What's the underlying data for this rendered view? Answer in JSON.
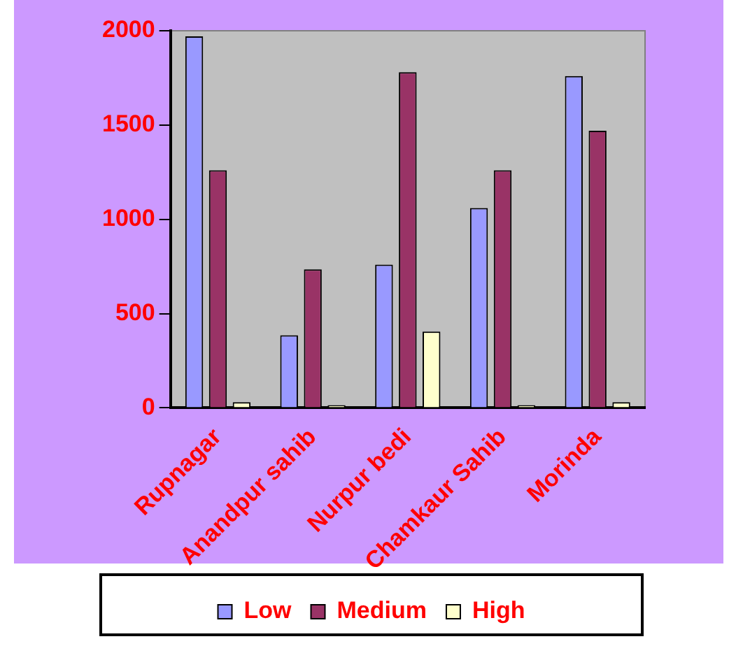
{
  "chart_data": {
    "type": "bar",
    "categories": [
      "Rupnagar",
      "Anandpur sahib",
      "Nurpur bedi",
      "Chamkaur Sahib",
      "Morinda"
    ],
    "series": [
      {
        "name": "Low",
        "color": "#9999ff",
        "values": [
          1970,
          385,
          760,
          1060,
          1760
        ]
      },
      {
        "name": "Medium",
        "color": "#993366",
        "values": [
          1260,
          735,
          1780,
          1260,
          1470
        ]
      },
      {
        "name": "High",
        "color": "#ffffcc",
        "values": [
          30,
          15,
          405,
          15,
          30
        ]
      }
    ],
    "ylim": [
      0,
      2000
    ],
    "yticks": [
      0,
      500,
      1000,
      1500,
      2000
    ],
    "grid": false,
    "legend": "bottom"
  }
}
